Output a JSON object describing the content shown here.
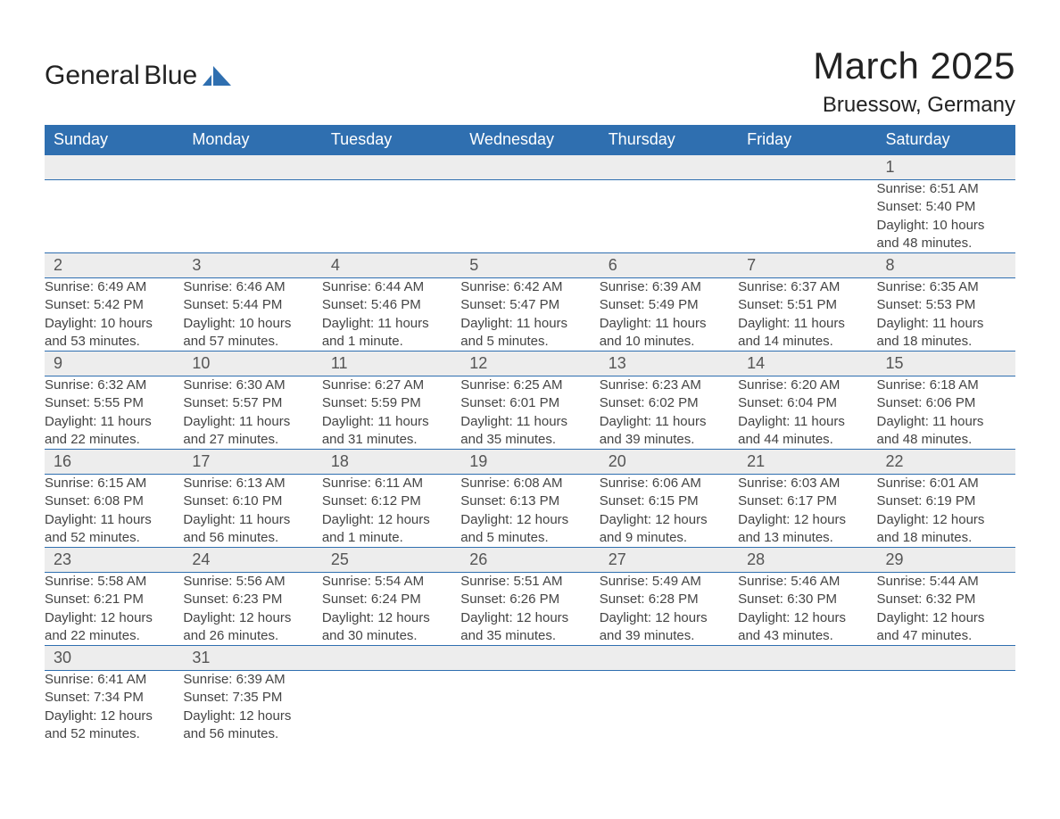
{
  "logo": {
    "word1": "General",
    "word2": "Blue"
  },
  "title": "March 2025",
  "location": "Bruessow, Germany",
  "colors": {
    "header_bg": "#2f6fb0",
    "header_fg": "#ffffff",
    "daynum_bg": "#ededed",
    "row_border": "#2f6fb0",
    "text": "#444444",
    "page_bg": "#ffffff"
  },
  "typography": {
    "month_title_fontsize": 42,
    "location_fontsize": 24,
    "header_cell_fontsize": 18,
    "daynum_fontsize": 18,
    "body_fontsize": 15,
    "font_family": "Arial"
  },
  "weekdays": [
    "Sunday",
    "Monday",
    "Tuesday",
    "Wednesday",
    "Thursday",
    "Friday",
    "Saturday"
  ],
  "weeks": [
    [
      null,
      null,
      null,
      null,
      null,
      null,
      {
        "day": "1",
        "sunrise": "Sunrise: 6:51 AM",
        "sunset": "Sunset: 5:40 PM",
        "dl1": "Daylight: 10 hours",
        "dl2": "and 48 minutes."
      }
    ],
    [
      {
        "day": "2",
        "sunrise": "Sunrise: 6:49 AM",
        "sunset": "Sunset: 5:42 PM",
        "dl1": "Daylight: 10 hours",
        "dl2": "and 53 minutes."
      },
      {
        "day": "3",
        "sunrise": "Sunrise: 6:46 AM",
        "sunset": "Sunset: 5:44 PM",
        "dl1": "Daylight: 10 hours",
        "dl2": "and 57 minutes."
      },
      {
        "day": "4",
        "sunrise": "Sunrise: 6:44 AM",
        "sunset": "Sunset: 5:46 PM",
        "dl1": "Daylight: 11 hours",
        "dl2": "and 1 minute."
      },
      {
        "day": "5",
        "sunrise": "Sunrise: 6:42 AM",
        "sunset": "Sunset: 5:47 PM",
        "dl1": "Daylight: 11 hours",
        "dl2": "and 5 minutes."
      },
      {
        "day": "6",
        "sunrise": "Sunrise: 6:39 AM",
        "sunset": "Sunset: 5:49 PM",
        "dl1": "Daylight: 11 hours",
        "dl2": "and 10 minutes."
      },
      {
        "day": "7",
        "sunrise": "Sunrise: 6:37 AM",
        "sunset": "Sunset: 5:51 PM",
        "dl1": "Daylight: 11 hours",
        "dl2": "and 14 minutes."
      },
      {
        "day": "8",
        "sunrise": "Sunrise: 6:35 AM",
        "sunset": "Sunset: 5:53 PM",
        "dl1": "Daylight: 11 hours",
        "dl2": "and 18 minutes."
      }
    ],
    [
      {
        "day": "9",
        "sunrise": "Sunrise: 6:32 AM",
        "sunset": "Sunset: 5:55 PM",
        "dl1": "Daylight: 11 hours",
        "dl2": "and 22 minutes."
      },
      {
        "day": "10",
        "sunrise": "Sunrise: 6:30 AM",
        "sunset": "Sunset: 5:57 PM",
        "dl1": "Daylight: 11 hours",
        "dl2": "and 27 minutes."
      },
      {
        "day": "11",
        "sunrise": "Sunrise: 6:27 AM",
        "sunset": "Sunset: 5:59 PM",
        "dl1": "Daylight: 11 hours",
        "dl2": "and 31 minutes."
      },
      {
        "day": "12",
        "sunrise": "Sunrise: 6:25 AM",
        "sunset": "Sunset: 6:01 PM",
        "dl1": "Daylight: 11 hours",
        "dl2": "and 35 minutes."
      },
      {
        "day": "13",
        "sunrise": "Sunrise: 6:23 AM",
        "sunset": "Sunset: 6:02 PM",
        "dl1": "Daylight: 11 hours",
        "dl2": "and 39 minutes."
      },
      {
        "day": "14",
        "sunrise": "Sunrise: 6:20 AM",
        "sunset": "Sunset: 6:04 PM",
        "dl1": "Daylight: 11 hours",
        "dl2": "and 44 minutes."
      },
      {
        "day": "15",
        "sunrise": "Sunrise: 6:18 AM",
        "sunset": "Sunset: 6:06 PM",
        "dl1": "Daylight: 11 hours",
        "dl2": "and 48 minutes."
      }
    ],
    [
      {
        "day": "16",
        "sunrise": "Sunrise: 6:15 AM",
        "sunset": "Sunset: 6:08 PM",
        "dl1": "Daylight: 11 hours",
        "dl2": "and 52 minutes."
      },
      {
        "day": "17",
        "sunrise": "Sunrise: 6:13 AM",
        "sunset": "Sunset: 6:10 PM",
        "dl1": "Daylight: 11 hours",
        "dl2": "and 56 minutes."
      },
      {
        "day": "18",
        "sunrise": "Sunrise: 6:11 AM",
        "sunset": "Sunset: 6:12 PM",
        "dl1": "Daylight: 12 hours",
        "dl2": "and 1 minute."
      },
      {
        "day": "19",
        "sunrise": "Sunrise: 6:08 AM",
        "sunset": "Sunset: 6:13 PM",
        "dl1": "Daylight: 12 hours",
        "dl2": "and 5 minutes."
      },
      {
        "day": "20",
        "sunrise": "Sunrise: 6:06 AM",
        "sunset": "Sunset: 6:15 PM",
        "dl1": "Daylight: 12 hours",
        "dl2": "and 9 minutes."
      },
      {
        "day": "21",
        "sunrise": "Sunrise: 6:03 AM",
        "sunset": "Sunset: 6:17 PM",
        "dl1": "Daylight: 12 hours",
        "dl2": "and 13 minutes."
      },
      {
        "day": "22",
        "sunrise": "Sunrise: 6:01 AM",
        "sunset": "Sunset: 6:19 PM",
        "dl1": "Daylight: 12 hours",
        "dl2": "and 18 minutes."
      }
    ],
    [
      {
        "day": "23",
        "sunrise": "Sunrise: 5:58 AM",
        "sunset": "Sunset: 6:21 PM",
        "dl1": "Daylight: 12 hours",
        "dl2": "and 22 minutes."
      },
      {
        "day": "24",
        "sunrise": "Sunrise: 5:56 AM",
        "sunset": "Sunset: 6:23 PM",
        "dl1": "Daylight: 12 hours",
        "dl2": "and 26 minutes."
      },
      {
        "day": "25",
        "sunrise": "Sunrise: 5:54 AM",
        "sunset": "Sunset: 6:24 PM",
        "dl1": "Daylight: 12 hours",
        "dl2": "and 30 minutes."
      },
      {
        "day": "26",
        "sunrise": "Sunrise: 5:51 AM",
        "sunset": "Sunset: 6:26 PM",
        "dl1": "Daylight: 12 hours",
        "dl2": "and 35 minutes."
      },
      {
        "day": "27",
        "sunrise": "Sunrise: 5:49 AM",
        "sunset": "Sunset: 6:28 PM",
        "dl1": "Daylight: 12 hours",
        "dl2": "and 39 minutes."
      },
      {
        "day": "28",
        "sunrise": "Sunrise: 5:46 AM",
        "sunset": "Sunset: 6:30 PM",
        "dl1": "Daylight: 12 hours",
        "dl2": "and 43 minutes."
      },
      {
        "day": "29",
        "sunrise": "Sunrise: 5:44 AM",
        "sunset": "Sunset: 6:32 PM",
        "dl1": "Daylight: 12 hours",
        "dl2": "and 47 minutes."
      }
    ],
    [
      {
        "day": "30",
        "sunrise": "Sunrise: 6:41 AM",
        "sunset": "Sunset: 7:34 PM",
        "dl1": "Daylight: 12 hours",
        "dl2": "and 52 minutes."
      },
      {
        "day": "31",
        "sunrise": "Sunrise: 6:39 AM",
        "sunset": "Sunset: 7:35 PM",
        "dl1": "Daylight: 12 hours",
        "dl2": "and 56 minutes."
      },
      null,
      null,
      null,
      null,
      null
    ]
  ]
}
